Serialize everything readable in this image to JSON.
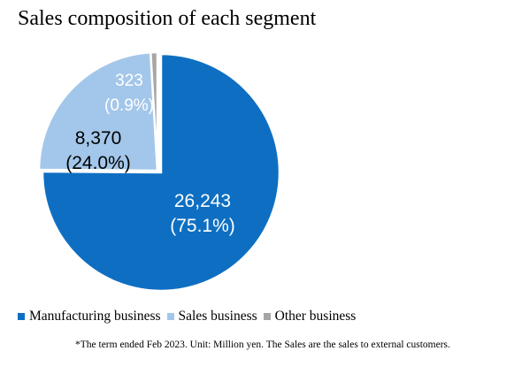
{
  "chart_data": {
    "type": "pie",
    "title": "Sales composition of each segment",
    "unit": "Million yen",
    "start_angle_deg": 0,
    "direction": "clockwise",
    "explode": "first",
    "slices": [
      {
        "name": "Manufacturing business",
        "value": 26243,
        "percent_label": "(75.1%)",
        "value_label": "26,243",
        "color": "#0e6fc2",
        "label_color": "#ffffff"
      },
      {
        "name": "Sales business",
        "value": 8370,
        "percent_label": "(24.0%)",
        "value_label": "8,370",
        "color": "#a3c7ea",
        "label_color": "#000000"
      },
      {
        "name": "Other business",
        "value": 323,
        "percent_label": "(0.9%)",
        "value_label": "323",
        "color": "#a6a6a6",
        "label_color": "#ffffff"
      }
    ],
    "legend": [
      "Manufacturing business",
      "Sales business",
      "Other business"
    ],
    "legend_position": "bottom",
    "footnote": "*The term ended Feb 2023. Unit: Million yen. The Sales are the sales to external customers."
  }
}
